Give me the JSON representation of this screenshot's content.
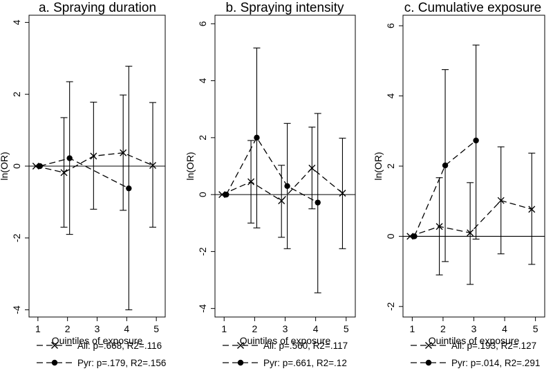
{
  "chart_data": [
    {
      "type": "line",
      "title": "a. Spraying duration",
      "xlabel": "Quintiles of exposure",
      "ylabel": "ln(OR)",
      "xlim": [
        0.7,
        5.3
      ],
      "ylim": [
        -4.2,
        4.2
      ],
      "x_ticks": [
        1,
        2,
        3,
        4,
        5
      ],
      "x_tick_labels": [
        "1",
        "2",
        "3",
        "4",
        "5"
      ],
      "y_ticks": [
        -4,
        -2,
        0,
        2,
        4
      ],
      "y_tick_labels": [
        "-4",
        "-2",
        "0",
        "2",
        "4"
      ],
      "reference_line": 0,
      "series": [
        {
          "name": "All",
          "marker": "x",
          "legend": "All: p=.668, R2=.116",
          "x": [
            0.93,
            1.88,
            2.88,
            3.88,
            4.88
          ],
          "values": [
            0,
            -0.18,
            0.28,
            0.37,
            0.02
          ],
          "ci_low": [
            null,
            -1.7,
            -1.2,
            -1.23,
            -1.7
          ],
          "ci_high": [
            null,
            1.35,
            1.78,
            1.98,
            1.77
          ]
        },
        {
          "name": "Pyr",
          "marker": "dot",
          "legend": "Pyr: p=.179, R2=.156",
          "x": [
            1.07,
            2.07,
            4.07
          ],
          "values": [
            0,
            0.22,
            -0.62
          ],
          "ci_low": [
            null,
            -1.9,
            -4.0
          ],
          "ci_high": [
            null,
            2.35,
            2.78
          ]
        }
      ]
    },
    {
      "type": "line",
      "title": "b. Spraying intensity",
      "xlabel": "Quintiles of exposure",
      "ylabel": "ln(OR)",
      "xlim": [
        0.7,
        5.3
      ],
      "ylim": [
        -4.3,
        6.3
      ],
      "x_ticks": [
        1,
        2,
        3,
        4,
        5
      ],
      "x_tick_labels": [
        "1",
        "2",
        "3",
        "4",
        "5"
      ],
      "y_ticks": [
        -4,
        -2,
        0,
        2,
        4,
        6
      ],
      "y_tick_labels": [
        "-4",
        "-2",
        "0",
        "2",
        "4",
        "6"
      ],
      "reference_line": 0,
      "series": [
        {
          "name": "All",
          "marker": "x",
          "legend": "All: p=.560, R2=.117",
          "x": [
            0.93,
            1.88,
            2.88,
            3.88,
            4.88
          ],
          "values": [
            0,
            0.45,
            -0.22,
            0.93,
            0.05
          ],
          "ci_low": [
            null,
            -1.0,
            -1.5,
            -0.5,
            -1.9
          ],
          "ci_high": [
            null,
            1.9,
            1.03,
            2.37,
            1.98
          ]
        },
        {
          "name": "Pyr",
          "marker": "dot",
          "legend": "Pyr: p=.661, R2=.12",
          "x": [
            1.07,
            2.07,
            3.07,
            4.07
          ],
          "values": [
            0,
            2.0,
            0.3,
            -0.28
          ],
          "ci_low": [
            null,
            -1.17,
            -1.9,
            -3.45
          ],
          "ci_high": [
            null,
            5.15,
            2.5,
            2.85
          ]
        }
      ]
    },
    {
      "type": "line",
      "title": "c. Cumulative exposure",
      "xlabel": "Quintiles of exposure",
      "ylabel": "ln(OR)",
      "xlim": [
        0.7,
        5.3
      ],
      "ylim": [
        -2.3,
        6.3
      ],
      "x_ticks": [
        1,
        2,
        3,
        4,
        5
      ],
      "x_tick_labels": [
        "1",
        "2",
        "3",
        "4",
        "5"
      ],
      "y_ticks": [
        -2,
        0,
        2,
        4,
        6
      ],
      "y_tick_labels": [
        "-2",
        "0",
        "2",
        "4",
        "6"
      ],
      "reference_line": 0,
      "series": [
        {
          "name": "All",
          "marker": "x",
          "legend": "All: p=.193, R2=.127",
          "x": [
            0.93,
            1.88,
            2.88,
            3.88,
            4.88
          ],
          "values": [
            0,
            0.28,
            0.1,
            1.02,
            0.77
          ],
          "ci_low": [
            null,
            -1.1,
            -1.37,
            -0.5,
            -0.8
          ],
          "ci_high": [
            null,
            1.67,
            1.53,
            2.55,
            2.37
          ]
        },
        {
          "name": "Pyr",
          "marker": "dot",
          "legend": "Pyr: p=.014, R2=.291",
          "x": [
            1.07,
            2.07,
            3.07
          ],
          "values": [
            0,
            2.02,
            2.73
          ],
          "ci_low": [
            null,
            -0.72,
            -0.08
          ],
          "ci_high": [
            null,
            4.75,
            5.45
          ]
        }
      ]
    }
  ]
}
